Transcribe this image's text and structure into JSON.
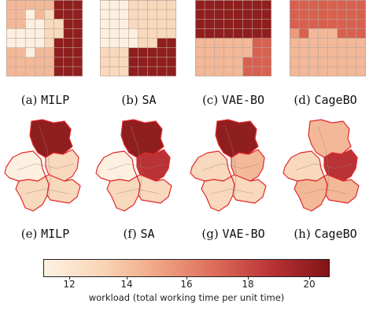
{
  "captions": [
    {
      "letter": "(a)",
      "method": "MILP"
    },
    {
      "letter": "(b)",
      "method": "SA"
    },
    {
      "letter": "(c)",
      "method": "VAE-BO"
    },
    {
      "letter": "(d)",
      "method": "CageBO"
    },
    {
      "letter": "(e)",
      "method": "MILP"
    },
    {
      "letter": "(f)",
      "method": "SA"
    },
    {
      "letter": "(g)",
      "method": "VAE-BO"
    },
    {
      "letter": "(h)",
      "method": "CageBO"
    }
  ],
  "colorbar": {
    "label": "workload (total working time per unit time)",
    "ticks": [
      "12",
      "14",
      "16",
      "18",
      "20"
    ],
    "range": [
      11.2,
      20.6
    ],
    "colors": [
      "#fdf2e2",
      "#f9d6b7",
      "#f0a584",
      "#dc6c58",
      "#b93236",
      "#7f1416"
    ]
  },
  "colors": {
    "border_red": "#e0282a",
    "grid_line": "#b8a49a"
  }
}
